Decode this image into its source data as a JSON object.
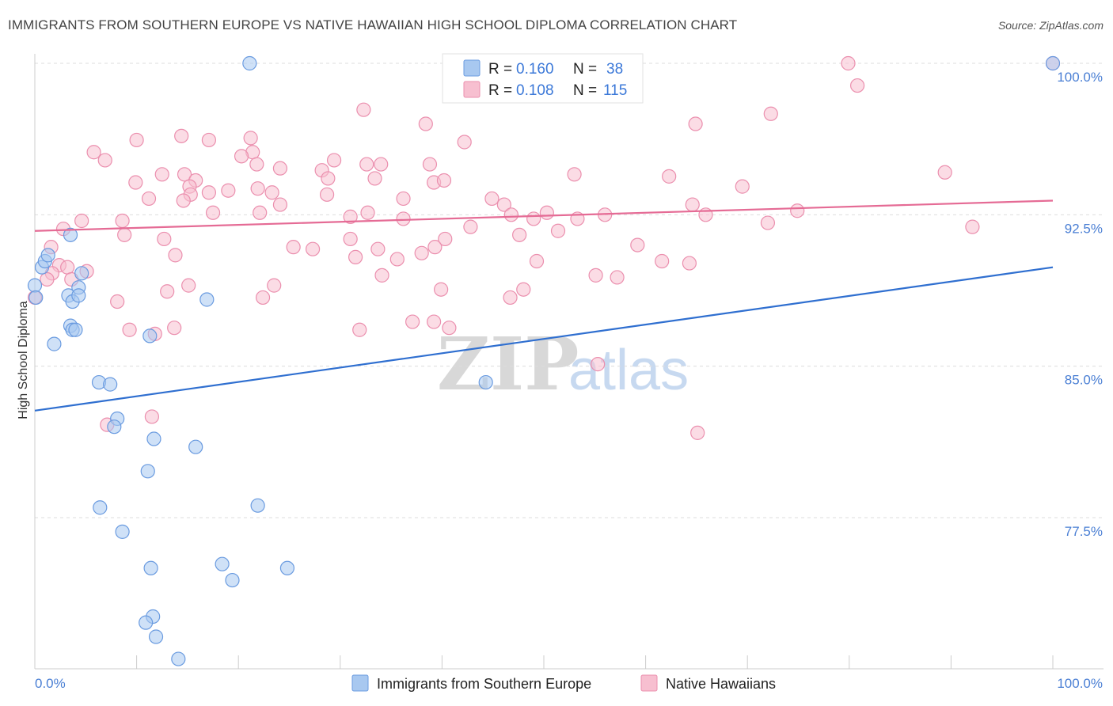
{
  "title": "IMMIGRANTS FROM SOUTHERN EUROPE VS NATIVE HAWAIIAN HIGH SCHOOL DIPLOMA CORRELATION CHART",
  "source": "Source: ZipAtlas.com",
  "watermark": {
    "zip": "ZIP",
    "atlas": "atlas"
  },
  "colors": {
    "blue_fill": "#a8c8f0",
    "blue_stroke": "#6a9be0",
    "blue_line": "#2f6fd0",
    "pink_fill": "#f7bfd0",
    "pink_stroke": "#eb8fae",
    "pink_line": "#e56b95",
    "grid": "#dddddd",
    "axis_text": "#4a7fd4"
  },
  "legend": {
    "r_label": "R =",
    "n_label": "N =",
    "series": [
      {
        "r": "0.160",
        "n": "38"
      },
      {
        "r": "0.108",
        "n": "115"
      }
    ]
  },
  "chart_data": {
    "type": "scatter",
    "ylabel": "High School Diploma",
    "xlabel": "",
    "xlim": [
      0,
      100
    ],
    "ylim": [
      70.5,
      100.8
    ],
    "x_tick_labels": [
      "0.0%",
      "100.0%"
    ],
    "y_ticks": [
      77.5,
      85.0,
      92.5,
      100.0
    ],
    "y_tick_labels": [
      "77.5%",
      "85.0%",
      "92.5%",
      "100.0%"
    ],
    "series": [
      {
        "name": "Immigrants from Southern Europe",
        "color": "blue",
        "trend": {
          "x": [
            0,
            100
          ],
          "y": [
            82.8,
            89.9
          ]
        },
        "points": [
          [
            21.1,
            100.0
          ],
          [
            0.0,
            89.0
          ],
          [
            0.7,
            89.9
          ],
          [
            1.0,
            90.2
          ],
          [
            1.3,
            90.5
          ],
          [
            3.5,
            91.5
          ],
          [
            4.6,
            89.6
          ],
          [
            4.3,
            88.9
          ],
          [
            3.3,
            88.5
          ],
          [
            3.7,
            88.2
          ],
          [
            4.3,
            88.5
          ],
          [
            16.9,
            88.3
          ],
          [
            3.5,
            87.0
          ],
          [
            3.7,
            86.8
          ],
          [
            4.0,
            86.8
          ],
          [
            11.3,
            86.5
          ],
          [
            1.9,
            86.1
          ],
          [
            6.3,
            84.2
          ],
          [
            7.4,
            84.1
          ],
          [
            44.3,
            84.2
          ],
          [
            8.1,
            82.4
          ],
          [
            7.8,
            82.0
          ],
          [
            11.7,
            81.4
          ],
          [
            15.8,
            81.0
          ],
          [
            11.1,
            79.8
          ],
          [
            6.4,
            78.0
          ],
          [
            21.9,
            78.1
          ],
          [
            8.6,
            76.8
          ],
          [
            11.4,
            75.0
          ],
          [
            18.4,
            75.2
          ],
          [
            19.4,
            74.4
          ],
          [
            24.8,
            75.0
          ],
          [
            11.6,
            72.6
          ],
          [
            10.9,
            72.3
          ],
          [
            11.9,
            71.6
          ],
          [
            14.1,
            70.5
          ],
          [
            100.0,
            100.0
          ],
          [
            0.1,
            88.4
          ]
        ]
      },
      {
        "name": "Native Hawaiians",
        "color": "pink",
        "trend": {
          "x": [
            0,
            100
          ],
          "y": [
            91.7,
            93.2
          ]
        },
        "points": [
          [
            79.9,
            100.0
          ],
          [
            100.0,
            100.0
          ],
          [
            80.8,
            98.9
          ],
          [
            32.3,
            97.7
          ],
          [
            64.9,
            97.0
          ],
          [
            38.4,
            97.0
          ],
          [
            72.3,
            97.5
          ],
          [
            14.4,
            96.4
          ],
          [
            17.1,
            96.2
          ],
          [
            21.2,
            96.3
          ],
          [
            10.0,
            96.2
          ],
          [
            42.2,
            96.1
          ],
          [
            5.8,
            95.6
          ],
          [
            21.4,
            95.6
          ],
          [
            20.3,
            95.4
          ],
          [
            6.9,
            95.2
          ],
          [
            29.4,
            95.2
          ],
          [
            32.6,
            95.0
          ],
          [
            34.0,
            95.0
          ],
          [
            38.8,
            95.0
          ],
          [
            21.8,
            95.0
          ],
          [
            24.1,
            94.8
          ],
          [
            28.2,
            94.7
          ],
          [
            53.0,
            94.5
          ],
          [
            62.3,
            94.4
          ],
          [
            89.4,
            94.6
          ],
          [
            14.7,
            94.5
          ],
          [
            12.5,
            94.5
          ],
          [
            28.8,
            94.3
          ],
          [
            33.4,
            94.3
          ],
          [
            9.9,
            94.1
          ],
          [
            15.8,
            94.2
          ],
          [
            39.2,
            94.1
          ],
          [
            40.2,
            94.2
          ],
          [
            15.2,
            93.9
          ],
          [
            19.0,
            93.7
          ],
          [
            23.3,
            93.6
          ],
          [
            15.3,
            93.5
          ],
          [
            17.1,
            93.6
          ],
          [
            21.9,
            93.8
          ],
          [
            28.7,
            93.5
          ],
          [
            36.2,
            93.3
          ],
          [
            44.9,
            93.3
          ],
          [
            14.6,
            93.2
          ],
          [
            24.1,
            93.0
          ],
          [
            11.2,
            93.3
          ],
          [
            46.1,
            93.0
          ],
          [
            64.6,
            93.0
          ],
          [
            69.5,
            93.9
          ],
          [
            74.9,
            92.7
          ],
          [
            50.3,
            92.6
          ],
          [
            56.0,
            92.5
          ],
          [
            65.9,
            92.5
          ],
          [
            53.3,
            92.3
          ],
          [
            4.6,
            92.2
          ],
          [
            8.6,
            92.2
          ],
          [
            31.0,
            92.4
          ],
          [
            17.5,
            92.6
          ],
          [
            22.1,
            92.6
          ],
          [
            32.7,
            92.6
          ],
          [
            36.2,
            92.3
          ],
          [
            49.0,
            92.3
          ],
          [
            46.8,
            92.5
          ],
          [
            72.0,
            92.1
          ],
          [
            92.1,
            91.9
          ],
          [
            42.8,
            91.9
          ],
          [
            2.8,
            91.8
          ],
          [
            51.4,
            91.7
          ],
          [
            8.8,
            91.5
          ],
          [
            12.7,
            91.3
          ],
          [
            31.0,
            91.3
          ],
          [
            40.3,
            91.3
          ],
          [
            47.6,
            91.5
          ],
          [
            59.2,
            91.0
          ],
          [
            25.4,
            90.9
          ],
          [
            27.3,
            90.8
          ],
          [
            33.7,
            90.8
          ],
          [
            38.0,
            90.6
          ],
          [
            39.3,
            90.9
          ],
          [
            1.6,
            90.9
          ],
          [
            13.8,
            90.5
          ],
          [
            31.5,
            90.4
          ],
          [
            35.6,
            90.3
          ],
          [
            49.3,
            90.2
          ],
          [
            61.6,
            90.2
          ],
          [
            64.3,
            90.1
          ],
          [
            2.4,
            90.0
          ],
          [
            3.2,
            89.9
          ],
          [
            3.6,
            89.3
          ],
          [
            5.1,
            89.7
          ],
          [
            1.7,
            89.6
          ],
          [
            34.1,
            89.5
          ],
          [
            57.2,
            89.4
          ],
          [
            1.2,
            89.3
          ],
          [
            15.1,
            89.0
          ],
          [
            23.5,
            89.0
          ],
          [
            48.0,
            88.8
          ],
          [
            55.1,
            89.5
          ],
          [
            13.0,
            88.7
          ],
          [
            8.1,
            88.2
          ],
          [
            22.4,
            88.4
          ],
          [
            39.9,
            88.8
          ],
          [
            0.0,
            88.4
          ],
          [
            46.7,
            88.4
          ],
          [
            11.8,
            86.6
          ],
          [
            31.9,
            86.8
          ],
          [
            9.3,
            86.8
          ],
          [
            13.7,
            86.9
          ],
          [
            37.1,
            87.2
          ],
          [
            39.2,
            87.2
          ],
          [
            40.7,
            86.9
          ],
          [
            55.3,
            85.1
          ],
          [
            11.5,
            82.5
          ],
          [
            7.1,
            82.1
          ],
          [
            65.1,
            81.7
          ]
        ]
      }
    ]
  },
  "bottom_legend": [
    {
      "label": "Immigrants from Southern Europe"
    },
    {
      "label": "Native Hawaiians"
    }
  ]
}
